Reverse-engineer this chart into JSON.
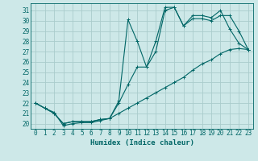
{
  "xlabel": "Humidex (Indice chaleur)",
  "ylabel": "",
  "bg_color": "#cde8e8",
  "grid_color": "#aacccc",
  "line_color": "#006666",
  "xlim": [
    -0.5,
    23.5
  ],
  "ylim": [
    19.5,
    31.7
  ],
  "yticks": [
    20,
    21,
    22,
    23,
    24,
    25,
    26,
    27,
    28,
    29,
    30,
    31
  ],
  "xticks": [
    0,
    1,
    2,
    3,
    4,
    5,
    6,
    7,
    8,
    9,
    10,
    11,
    12,
    13,
    14,
    15,
    16,
    17,
    18,
    19,
    20,
    21,
    22,
    23
  ],
  "curve_straight_x": [
    0,
    1,
    2,
    3,
    4,
    5,
    6,
    7,
    8,
    9,
    10,
    11,
    12,
    13,
    14,
    15,
    16,
    17,
    18,
    19,
    20,
    21,
    22,
    23
  ],
  "curve_straight_y": [
    22.0,
    21.5,
    21.1,
    19.8,
    20.0,
    20.1,
    20.1,
    20.3,
    20.5,
    21.0,
    21.5,
    22.0,
    22.5,
    23.0,
    23.5,
    24.0,
    24.5,
    25.2,
    25.8,
    26.2,
    26.8,
    27.2,
    27.3,
    27.2
  ],
  "curve_mid_x": [
    0,
    1,
    2,
    3,
    4,
    5,
    6,
    7,
    8,
    9,
    10,
    11,
    12,
    13,
    14,
    15,
    16,
    17,
    18,
    19,
    20,
    21,
    22,
    23
  ],
  "curve_mid_y": [
    22.0,
    21.5,
    21.0,
    20.0,
    20.2,
    20.2,
    20.2,
    20.4,
    20.5,
    22.0,
    23.8,
    25.5,
    25.5,
    27.0,
    31.0,
    31.3,
    29.5,
    30.2,
    30.2,
    30.0,
    30.5,
    30.5,
    29.0,
    27.2
  ],
  "curve_upper_x": [
    0,
    1,
    2,
    3,
    4,
    5,
    6,
    7,
    8,
    9,
    10,
    11,
    12,
    13,
    14,
    15,
    16,
    17,
    18,
    19,
    20,
    21,
    22,
    23
  ],
  "curve_upper_y": [
    22.0,
    21.5,
    21.0,
    20.0,
    20.2,
    20.2,
    20.2,
    20.4,
    20.5,
    22.2,
    30.1,
    28.0,
    25.5,
    28.0,
    31.3,
    31.3,
    29.5,
    30.5,
    30.5,
    30.3,
    31.0,
    29.2,
    27.8,
    27.2
  ],
  "tick_fontsize": 5.5,
  "xlabel_fontsize": 6.5
}
